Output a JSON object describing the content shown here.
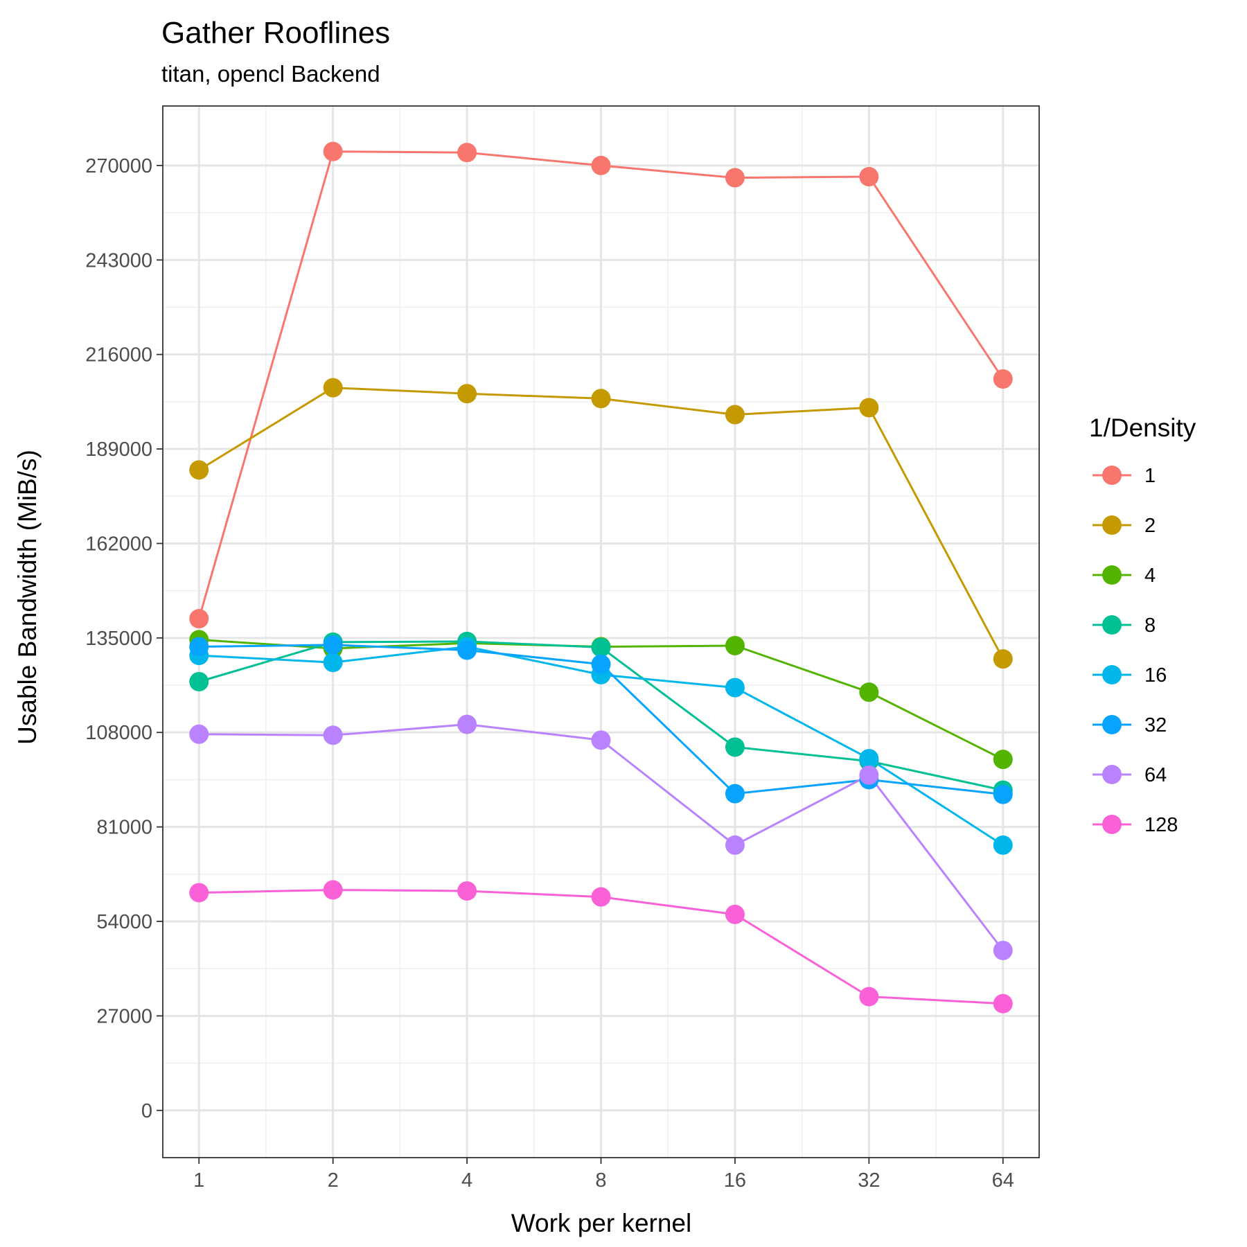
{
  "chart_data": {
    "type": "line",
    "title": "Gather Rooflines",
    "subtitle": "titan, opencl Backend",
    "xlabel": "Work per kernel",
    "ylabel": "Usable Bandwidth (MiB/s)",
    "x_scale": "log2",
    "x": [
      1,
      2,
      4,
      8,
      16,
      32,
      64
    ],
    "x_tick_labels": [
      "1",
      "2",
      "4",
      "8",
      "16",
      "32",
      "64"
    ],
    "y_ticks": [
      0,
      27000,
      54000,
      81000,
      108000,
      135000,
      162000,
      189000,
      216000,
      243000,
      270000
    ],
    "y_tick_labels": [
      "0",
      "27000",
      "54000",
      "81000",
      "108000",
      "135000",
      "162000",
      "189000",
      "216000",
      "243000",
      "270000"
    ],
    "ylim": [
      -13500,
      287000
    ],
    "grid": true,
    "legend_title": "1/Density",
    "legend_position": "right",
    "series": [
      {
        "name": "1",
        "color": "#F8766D",
        "values": [
          140500,
          274000,
          273700,
          270000,
          266500,
          266800,
          209000
        ]
      },
      {
        "name": "2",
        "color": "#C49A00",
        "values": [
          183000,
          206500,
          204800,
          203400,
          198800,
          200800,
          129000
        ]
      },
      {
        "name": "4",
        "color": "#53B400",
        "values": [
          134500,
          132000,
          133500,
          132500,
          132800,
          119500,
          100300
        ]
      },
      {
        "name": "8",
        "color": "#00C094",
        "values": [
          122500,
          133800,
          134000,
          132300,
          103800,
          99800,
          91500
        ]
      },
      {
        "name": "16",
        "color": "#00B6EB",
        "values": [
          130000,
          128000,
          132500,
          124500,
          120800,
          100500,
          75800
        ]
      },
      {
        "name": "32",
        "color": "#06A4FF",
        "values": [
          132500,
          133000,
          131500,
          127500,
          90500,
          94500,
          90300
        ]
      },
      {
        "name": "64",
        "color": "#B983FF",
        "values": [
          107500,
          107200,
          110300,
          105800,
          75800,
          95800,
          45700
        ]
      },
      {
        "name": "128",
        "color": "#FB61D7",
        "values": [
          62200,
          63000,
          62700,
          61000,
          56000,
          32500,
          30500
        ]
      }
    ]
  }
}
